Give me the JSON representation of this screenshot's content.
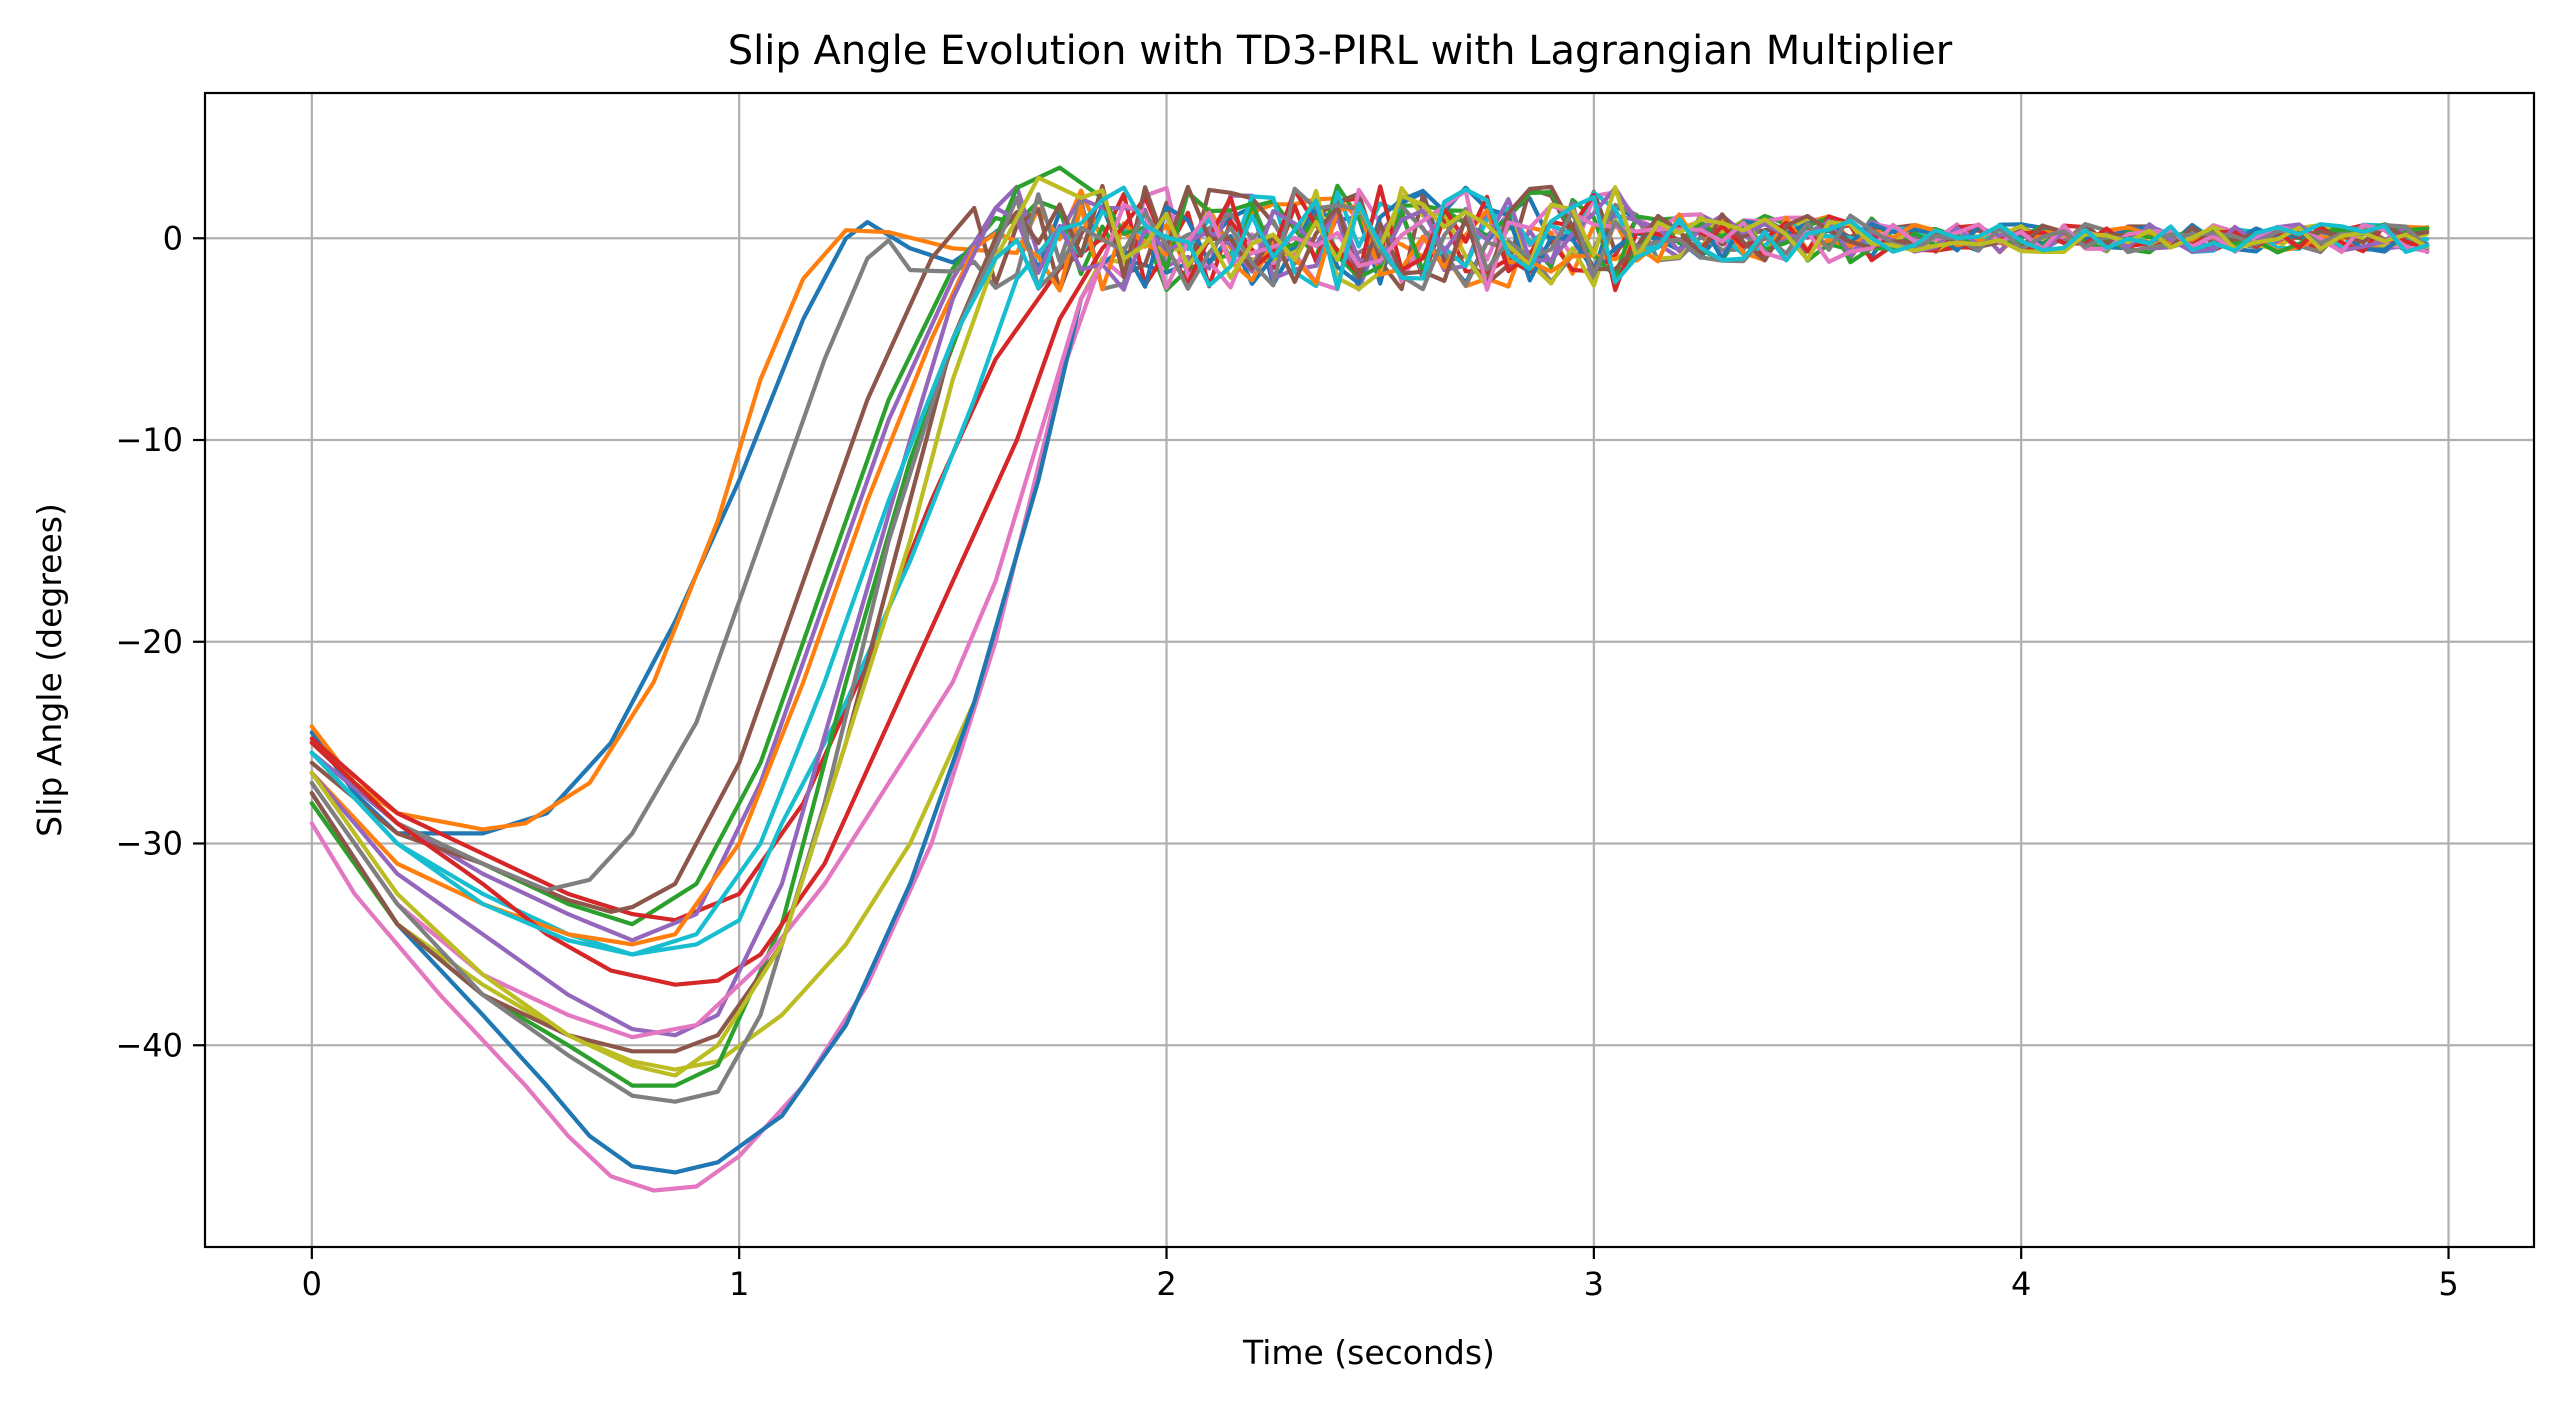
{
  "chart_data": {
    "type": "line",
    "title": "Slip Angle Evolution with TD3-PIRL with Lagrangian Multiplier",
    "xlabel": "Time (seconds)",
    "ylabel": "Slip Angle (degrees)",
    "xlim": [
      -0.25,
      5.2
    ],
    "ylim": [
      -50,
      7.2
    ],
    "xticks": [
      0,
      1,
      2,
      3,
      4,
      5
    ],
    "yticks": [
      -40,
      -30,
      -20,
      -10,
      0
    ],
    "grid": true,
    "x_start": 0,
    "x_step": 0.05,
    "x_end": 4.95,
    "series": [
      {
        "color": "#1f77b4",
        "keypoints": [
          [
            0,
            -24.5
          ],
          [
            0.1,
            -27.5
          ],
          [
            0.2,
            -29.5
          ],
          [
            0.4,
            -29.5
          ],
          [
            0.55,
            -28.5
          ],
          [
            0.7,
            -25
          ],
          [
            0.85,
            -19
          ],
          [
            1.0,
            -12
          ],
          [
            1.15,
            -4
          ],
          [
            1.25,
            0
          ],
          [
            1.3,
            0.8
          ],
          [
            1.4,
            -0.5
          ],
          [
            1.5,
            -1.2
          ],
          [
            1.6,
            0.3
          ]
        ]
      },
      {
        "color": "#ff7f0e",
        "keypoints": [
          [
            0,
            -24.2
          ],
          [
            0.1,
            -27
          ],
          [
            0.2,
            -28.5
          ],
          [
            0.4,
            -29.3
          ],
          [
            0.5,
            -29
          ],
          [
            0.65,
            -27
          ],
          [
            0.8,
            -22
          ],
          [
            0.95,
            -14
          ],
          [
            1.05,
            -7
          ],
          [
            1.15,
            -2
          ],
          [
            1.25,
            0.4
          ],
          [
            1.35,
            0.3
          ],
          [
            1.5,
            -0.5
          ],
          [
            1.7,
            -0.8
          ]
        ]
      },
      {
        "color": "#2ca02c",
        "keypoints": [
          [
            0,
            -25
          ],
          [
            0.2,
            -29
          ],
          [
            0.4,
            -31
          ],
          [
            0.6,
            -33
          ],
          [
            0.75,
            -34
          ],
          [
            0.9,
            -32
          ],
          [
            1.05,
            -26
          ],
          [
            1.2,
            -17
          ],
          [
            1.35,
            -8
          ],
          [
            1.5,
            -1.5
          ],
          [
            1.6,
            1
          ],
          [
            1.7,
            0.5
          ]
        ]
      },
      {
        "color": "#d62728",
        "keypoints": [
          [
            0,
            -24.8
          ],
          [
            0.2,
            -28.5
          ],
          [
            0.4,
            -30.5
          ],
          [
            0.6,
            -32.5
          ],
          [
            0.75,
            -33.5
          ],
          [
            0.85,
            -33.8
          ],
          [
            1.0,
            -32.5
          ],
          [
            1.15,
            -28
          ],
          [
            1.3,
            -21
          ],
          [
            1.45,
            -13
          ],
          [
            1.6,
            -6
          ],
          [
            1.75,
            -1.5
          ],
          [
            1.85,
            0
          ]
        ]
      },
      {
        "color": "#9467bd",
        "keypoints": [
          [
            0,
            -25.5
          ],
          [
            0.2,
            -29
          ],
          [
            0.4,
            -31.5
          ],
          [
            0.6,
            -33.5
          ],
          [
            0.75,
            -34.8
          ],
          [
            0.9,
            -33.5
          ],
          [
            1.05,
            -27
          ],
          [
            1.2,
            -18
          ],
          [
            1.35,
            -9
          ],
          [
            1.5,
            -2
          ],
          [
            1.6,
            1.5
          ]
        ]
      },
      {
        "color": "#8c564b",
        "keypoints": [
          [
            0,
            -26
          ],
          [
            0.2,
            -29.5
          ],
          [
            0.4,
            -31
          ],
          [
            0.6,
            -32.8
          ],
          [
            0.72,
            -33.5
          ],
          [
            0.85,
            -32
          ],
          [
            1.0,
            -26
          ],
          [
            1.15,
            -17
          ],
          [
            1.3,
            -8
          ],
          [
            1.45,
            -1
          ],
          [
            1.55,
            1.5
          ]
        ]
      },
      {
        "color": "#e377c2",
        "keypoints": [
          [
            0,
            -29
          ],
          [
            0.1,
            -32.5
          ],
          [
            0.3,
            -37.5
          ],
          [
            0.5,
            -42
          ],
          [
            0.6,
            -44.5
          ],
          [
            0.7,
            -46.5
          ],
          [
            0.8,
            -47.2
          ],
          [
            0.9,
            -47
          ],
          [
            1.0,
            -45.5
          ],
          [
            1.15,
            -42
          ],
          [
            1.3,
            -37
          ],
          [
            1.45,
            -30
          ],
          [
            1.6,
            -20
          ],
          [
            1.75,
            -7
          ],
          [
            1.85,
            -1
          ]
        ]
      },
      {
        "color": "#7f7f7f",
        "keypoints": [
          [
            0,
            -25
          ],
          [
            0.2,
            -29
          ],
          [
            0.4,
            -31
          ],
          [
            0.55,
            -32.3
          ],
          [
            0.65,
            -31.8
          ],
          [
            0.75,
            -29.5
          ],
          [
            0.9,
            -24
          ],
          [
            1.05,
            -15
          ],
          [
            1.2,
            -6
          ],
          [
            1.3,
            -1
          ],
          [
            1.4,
            0.8
          ]
        ]
      },
      {
        "color": "#bcbd22",
        "keypoints": [
          [
            0,
            -28
          ],
          [
            0.2,
            -34
          ],
          [
            0.4,
            -37
          ],
          [
            0.6,
            -39.5
          ],
          [
            0.75,
            -40.8
          ],
          [
            0.85,
            -41.2
          ],
          [
            0.95,
            -40.8
          ],
          [
            1.1,
            -38.5
          ],
          [
            1.25,
            -35
          ],
          [
            1.4,
            -30
          ],
          [
            1.55,
            -23
          ],
          [
            1.7,
            -12
          ],
          [
            1.8,
            -3
          ],
          [
            1.9,
            1
          ]
        ]
      },
      {
        "color": "#17becf",
        "keypoints": [
          [
            0,
            -25.5
          ],
          [
            0.2,
            -30
          ],
          [
            0.4,
            -32.5
          ],
          [
            0.6,
            -34.5
          ],
          [
            0.75,
            -35.5
          ],
          [
            0.9,
            -35
          ],
          [
            1.0,
            -33.8
          ],
          [
            1.1,
            -29
          ],
          [
            1.25,
            -23
          ],
          [
            1.4,
            -16
          ],
          [
            1.55,
            -8
          ],
          [
            1.65,
            -2
          ],
          [
            1.75,
            0.5
          ]
        ]
      },
      {
        "color": "#1f77b4",
        "keypoints": [
          [
            0,
            -27.5
          ],
          [
            0.2,
            -34
          ],
          [
            0.4,
            -38.5
          ],
          [
            0.55,
            -42
          ],
          [
            0.65,
            -44.5
          ],
          [
            0.75,
            -46
          ],
          [
            0.85,
            -46.3
          ],
          [
            0.95,
            -45.8
          ],
          [
            1.1,
            -43.5
          ],
          [
            1.25,
            -39
          ],
          [
            1.4,
            -32
          ],
          [
            1.55,
            -23
          ],
          [
            1.7,
            -12
          ],
          [
            1.8,
            -3
          ],
          [
            1.9,
            0.5
          ]
        ]
      },
      {
        "color": "#ff7f0e",
        "keypoints": [
          [
            0,
            -26.5
          ],
          [
            0.2,
            -31
          ],
          [
            0.4,
            -33
          ],
          [
            0.6,
            -34.5
          ],
          [
            0.75,
            -35
          ],
          [
            0.85,
            -34.5
          ],
          [
            1.0,
            -30
          ],
          [
            1.15,
            -22
          ],
          [
            1.3,
            -13
          ],
          [
            1.45,
            -5
          ],
          [
            1.55,
            -0.5
          ],
          [
            1.65,
            1
          ]
        ]
      },
      {
        "color": "#2ca02c",
        "keypoints": [
          [
            0,
            -28
          ],
          [
            0.2,
            -34
          ],
          [
            0.4,
            -37.5
          ],
          [
            0.6,
            -40
          ],
          [
            0.75,
            -42
          ],
          [
            0.85,
            -42
          ],
          [
            0.95,
            -41
          ],
          [
            1.1,
            -34
          ],
          [
            1.25,
            -22
          ],
          [
            1.4,
            -11
          ],
          [
            1.55,
            -2.5
          ],
          [
            1.65,
            2.5
          ],
          [
            1.75,
            3.5
          ],
          [
            1.85,
            2
          ]
        ]
      },
      {
        "color": "#d62728",
        "keypoints": [
          [
            0,
            -25
          ],
          [
            0.2,
            -29
          ],
          [
            0.4,
            -32
          ],
          [
            0.55,
            -34.5
          ],
          [
            0.7,
            -36.3
          ],
          [
            0.85,
            -37
          ],
          [
            0.95,
            -36.8
          ],
          [
            1.05,
            -35.5
          ],
          [
            1.2,
            -31
          ],
          [
            1.35,
            -24
          ],
          [
            1.5,
            -17
          ],
          [
            1.65,
            -10
          ],
          [
            1.75,
            -4
          ],
          [
            1.85,
            -0.5
          ]
        ]
      },
      {
        "color": "#9467bd",
        "keypoints": [
          [
            0,
            -26.5
          ],
          [
            0.2,
            -31.5
          ],
          [
            0.4,
            -34.5
          ],
          [
            0.6,
            -37.5
          ],
          [
            0.75,
            -39.2
          ],
          [
            0.85,
            -39.5
          ],
          [
            0.95,
            -38.5
          ],
          [
            1.1,
            -32
          ],
          [
            1.25,
            -21
          ],
          [
            1.4,
            -10
          ],
          [
            1.5,
            -3
          ],
          [
            1.6,
            1.5
          ]
        ]
      },
      {
        "color": "#8c564b",
        "keypoints": [
          [
            0,
            -27.5
          ],
          [
            0.2,
            -34
          ],
          [
            0.4,
            -37.5
          ],
          [
            0.6,
            -39.5
          ],
          [
            0.75,
            -40.3
          ],
          [
            0.85,
            -40.3
          ],
          [
            0.95,
            -39.5
          ],
          [
            1.1,
            -35
          ],
          [
            1.25,
            -25
          ],
          [
            1.4,
            -13
          ],
          [
            1.5,
            -5
          ],
          [
            1.6,
            0
          ]
        ]
      },
      {
        "color": "#e377c2",
        "keypoints": [
          [
            0,
            -27
          ],
          [
            0.2,
            -33
          ],
          [
            0.4,
            -36.5
          ],
          [
            0.6,
            -38.5
          ],
          [
            0.75,
            -39.6
          ],
          [
            0.9,
            -39
          ],
          [
            1.05,
            -36
          ],
          [
            1.2,
            -32
          ],
          [
            1.35,
            -27
          ],
          [
            1.5,
            -22
          ],
          [
            1.6,
            -17
          ],
          [
            1.7,
            -10
          ],
          [
            1.8,
            -3
          ],
          [
            1.9,
            0.5
          ]
        ]
      },
      {
        "color": "#7f7f7f",
        "keypoints": [
          [
            0,
            -27
          ],
          [
            0.2,
            -33
          ],
          [
            0.4,
            -37.5
          ],
          [
            0.6,
            -40.5
          ],
          [
            0.75,
            -42.5
          ],
          [
            0.85,
            -42.8
          ],
          [
            0.95,
            -42.3
          ],
          [
            1.05,
            -38.5
          ],
          [
            1.2,
            -28
          ],
          [
            1.35,
            -15
          ],
          [
            1.5,
            -5
          ],
          [
            1.6,
            -0.5
          ]
        ]
      },
      {
        "color": "#bcbd22",
        "keypoints": [
          [
            0,
            -26.5
          ],
          [
            0.2,
            -32.5
          ],
          [
            0.4,
            -36.5
          ],
          [
            0.6,
            -39.5
          ],
          [
            0.75,
            -41
          ],
          [
            0.85,
            -41.5
          ],
          [
            0.95,
            -40
          ],
          [
            1.1,
            -35
          ],
          [
            1.25,
            -25
          ],
          [
            1.4,
            -15
          ],
          [
            1.5,
            -7
          ],
          [
            1.6,
            -1
          ],
          [
            1.7,
            3
          ],
          [
            1.8,
            2
          ]
        ]
      },
      {
        "color": "#17becf",
        "keypoints": [
          [
            0,
            -25.5
          ],
          [
            0.2,
            -30
          ],
          [
            0.4,
            -33
          ],
          [
            0.6,
            -34.8
          ],
          [
            0.75,
            -35.5
          ],
          [
            0.9,
            -34.5
          ],
          [
            1.05,
            -30
          ],
          [
            1.2,
            -22
          ],
          [
            1.35,
            -13
          ],
          [
            1.5,
            -5
          ],
          [
            1.6,
            -1
          ],
          [
            1.7,
            0.8
          ]
        ]
      }
    ]
  }
}
